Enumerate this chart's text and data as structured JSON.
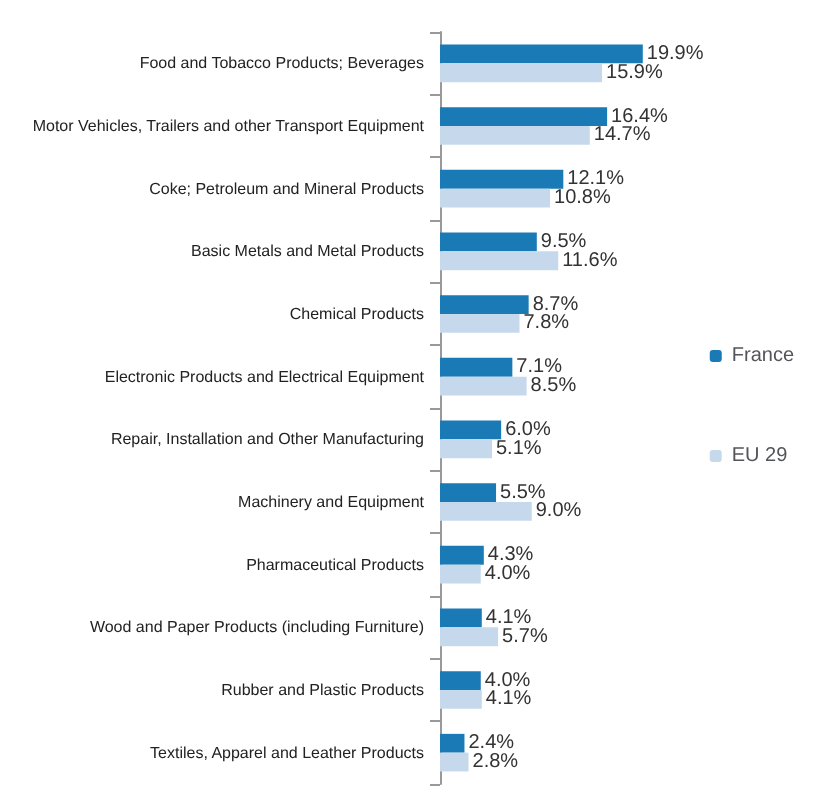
{
  "chart_data": {
    "type": "bar",
    "orientation": "horizontal",
    "categories": [
      "Food and Tobacco Products; Beverages",
      "Motor Vehicles, Trailers and other Transport Equipment",
      "Coke; Petroleum and Mineral Products",
      "Basic Metals and Metal Products",
      "Chemical Products",
      "Electronic Products and Electrical Equipment",
      "Repair, Installation and Other Manufacturing",
      "Machinery and Equipment",
      "Pharmaceutical Products",
      "Wood and Paper Products (including Furniture)",
      "Rubber and Plastic Products",
      "Textiles, Apparel and Leather Products"
    ],
    "series": [
      {
        "name": "France",
        "color": "#1a7ab5",
        "values": [
          19.9,
          16.4,
          12.1,
          9.5,
          8.7,
          7.1,
          6.0,
          5.5,
          4.3,
          4.1,
          4.0,
          2.4
        ],
        "value_labels": [
          "19.9%",
          "16.4%",
          "12.1%",
          "9.5%",
          "8.7%",
          "7.1%",
          "6.0%",
          "5.5%",
          "4.3%",
          "4.1%",
          "4.0%",
          "2.4%"
        ]
      },
      {
        "name": "EU 29",
        "color": "#c6d9ec",
        "values": [
          15.9,
          14.7,
          10.8,
          11.6,
          7.8,
          8.5,
          5.1,
          9.0,
          4.0,
          5.7,
          4.1,
          2.8
        ],
        "value_labels": [
          "15.9%",
          "14.7%",
          "10.8%",
          "11.6%",
          "7.8%",
          "8.5%",
          "5.1%",
          "9.0%",
          "4.0%",
          "5.7%",
          "4.1%",
          "2.8%"
        ]
      }
    ],
    "legend": "right",
    "grid": false
  }
}
